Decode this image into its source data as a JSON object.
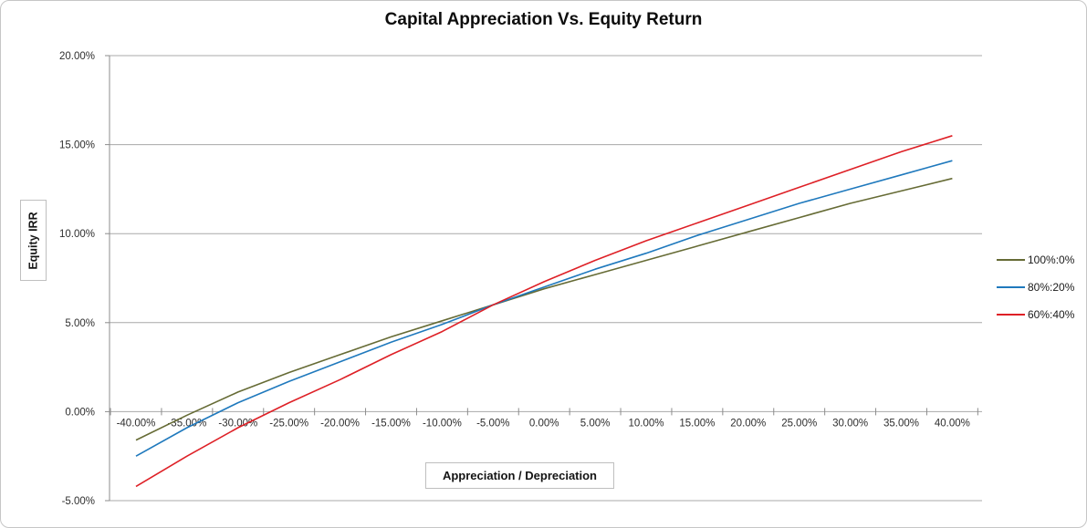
{
  "ui": {
    "frame_border_color": "#c6c6c6",
    "grid_color": "#a8a8a8",
    "axis_color": "#8c8c8c",
    "tick_text_color": "#2e2e2e"
  },
  "chart_data": {
    "type": "line",
    "title": "Capital Appreciation Vs. Equity Return",
    "xlabel": "Appreciation / Depreciation",
    "ylabel": "Equity IRR",
    "xlim": [
      -40,
      40
    ],
    "ylim": [
      -5,
      20
    ],
    "grid": "horizontal major gridlines on, white background",
    "legend_position": "right",
    "x_values": [
      -40,
      -35,
      -30,
      -25,
      -20,
      -15,
      -10,
      -5,
      0,
      5,
      10,
      15,
      20,
      25,
      30,
      35,
      40
    ],
    "x_tick_labels": [
      "-40.00%",
      "-35.00%",
      "-30.00%",
      "-25.00%",
      "-20.00%",
      "-15.00%",
      "-10.00%",
      "-5.00%",
      "0.00%",
      "5.00%",
      "10.00%",
      "15.00%",
      "20.00%",
      "25.00%",
      "30.00%",
      "35.00%",
      "40.00%"
    ],
    "y_ticks": [
      20,
      15,
      10,
      5,
      0,
      -5
    ],
    "y_tick_labels": [
      "20.00%",
      "15.00%",
      "10.00%",
      "5.00%",
      "0.00%",
      "-5.00%"
    ],
    "series": [
      {
        "name": "100%:0%",
        "color": "#666b35",
        "values": [
          -1.6,
          -0.2,
          1.1,
          2.2,
          3.2,
          4.2,
          5.1,
          6.0,
          6.9,
          7.7,
          8.5,
          9.3,
          10.1,
          10.9,
          11.7,
          12.4,
          13.1
        ]
      },
      {
        "name": "80%:20%",
        "color": "#1f79bd",
        "values": [
          -2.5,
          -0.9,
          0.5,
          1.7,
          2.8,
          3.9,
          4.9,
          6.0,
          7.0,
          8.0,
          8.9,
          9.9,
          10.8,
          11.7,
          12.5,
          13.3,
          14.1
        ]
      },
      {
        "name": "60%:40%",
        "color": "#de2026",
        "values": [
          -4.2,
          -2.5,
          -0.9,
          0.5,
          1.8,
          3.2,
          4.5,
          6.0,
          7.3,
          8.5,
          9.6,
          10.6,
          11.6,
          12.6,
          13.6,
          14.6,
          15.5
        ]
      }
    ]
  }
}
